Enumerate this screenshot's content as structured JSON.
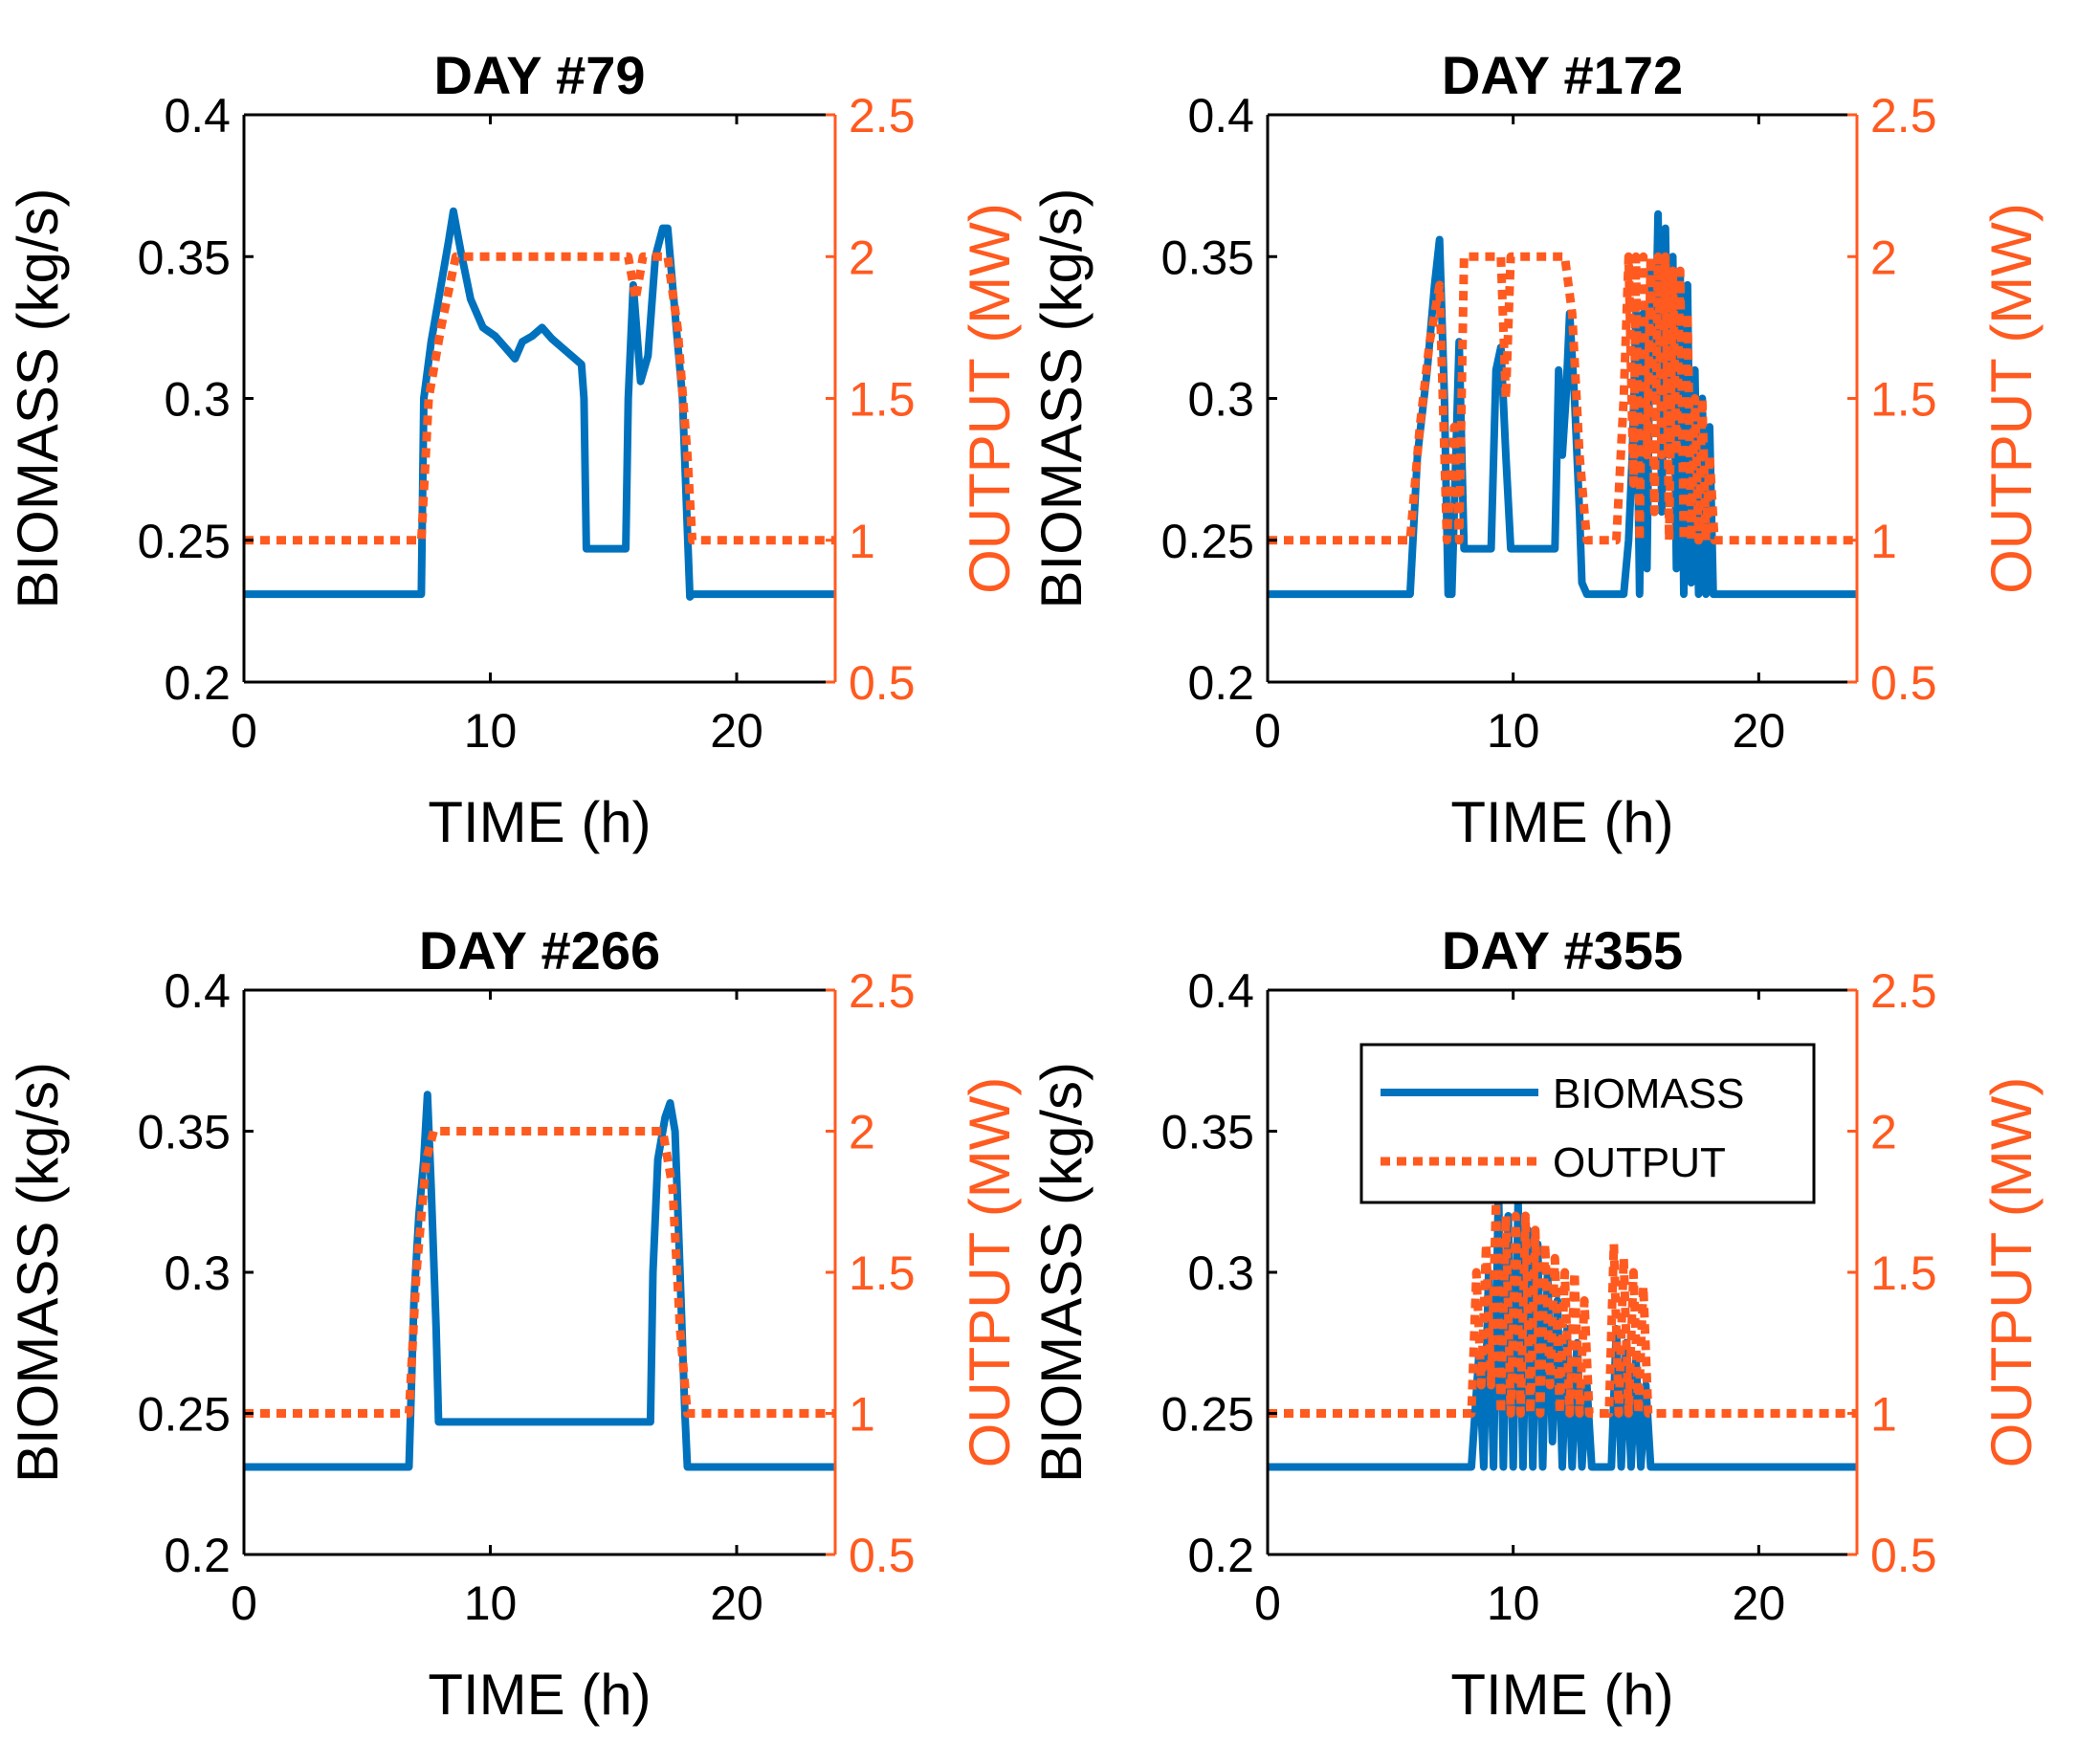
{
  "colors": {
    "biomass": "#0072BD",
    "output": "#FF5A1F",
    "axis": "#000000"
  },
  "chart_data": [
    {
      "type": "line",
      "title": "DAY #79",
      "xlabel": "TIME (h)",
      "ylabel": "BIOMASS (kg/s)",
      "y2label": "OUTPUT (MW)",
      "xlim": [
        0,
        24
      ],
      "ylim": [
        0.2,
        0.4
      ],
      "y2lim": [
        0.5,
        2.5
      ],
      "xticks": [
        0,
        10,
        20
      ],
      "xtick_labels": [
        "0",
        "10",
        "20"
      ],
      "yticks": [
        0.2,
        0.25,
        0.3,
        0.35,
        0.4
      ],
      "ytick_labels": [
        "0.2",
        "0.25",
        "0.3",
        "0.35",
        "0.4"
      ],
      "y2ticks": [
        0.5,
        1,
        1.5,
        2,
        2.5
      ],
      "y2tick_labels": [
        "0.5",
        "1",
        "1.5",
        "2",
        "2.5"
      ],
      "legend": null,
      "series": [
        {
          "name": "BIOMASS",
          "axis": "left",
          "style": "solid",
          "x": [
            0,
            7.2,
            7.3,
            7.6,
            8.0,
            8.3,
            8.5,
            8.8,
            9.2,
            9.7,
            10.2,
            10.6,
            11.0,
            11.3,
            11.7,
            12.1,
            12.5,
            12.9,
            13.3,
            13.7,
            13.8,
            13.9,
            15.5,
            15.6,
            15.8,
            16.1,
            16.4,
            16.7,
            17.0,
            17.2,
            17.4,
            17.6,
            17.8,
            18.1,
            18.2,
            24
          ],
          "y": [
            0.231,
            0.231,
            0.3,
            0.32,
            0.34,
            0.355,
            0.366,
            0.352,
            0.335,
            0.325,
            0.322,
            0.318,
            0.314,
            0.32,
            0.322,
            0.325,
            0.321,
            0.318,
            0.315,
            0.312,
            0.3,
            0.247,
            0.247,
            0.3,
            0.34,
            0.306,
            0.315,
            0.35,
            0.36,
            0.36,
            0.34,
            0.32,
            0.3,
            0.23,
            0.231,
            0.231
          ]
        },
        {
          "name": "OUTPUT",
          "axis": "right",
          "style": "dotted",
          "x": [
            0,
            7.2,
            7.5,
            8.0,
            8.6,
            15.6,
            15.9,
            16.2,
            17.2,
            17.6,
            18.0,
            18.2,
            24
          ],
          "y": [
            1,
            1,
            1.5,
            1.75,
            2,
            2,
            1.85,
            2,
            2,
            1.75,
            1.3,
            1,
            1
          ]
        }
      ]
    },
    {
      "type": "line",
      "title": "DAY #172",
      "xlabel": "TIME (h)",
      "ylabel": "BIOMASS (kg/s)",
      "y2label": "OUTPUT (MW)",
      "xlim": [
        0,
        24
      ],
      "ylim": [
        0.2,
        0.4
      ],
      "y2lim": [
        0.5,
        2.5
      ],
      "xticks": [
        0,
        10,
        20
      ],
      "xtick_labels": [
        "0",
        "10",
        "20"
      ],
      "yticks": [
        0.2,
        0.25,
        0.3,
        0.35,
        0.4
      ],
      "ytick_labels": [
        "0.2",
        "0.25",
        "0.3",
        "0.35",
        "0.4"
      ],
      "y2ticks": [
        0.5,
        1,
        1.5,
        2,
        2.5
      ],
      "y2tick_labels": [
        "0.5",
        "1",
        "1.5",
        "2",
        "2.5"
      ],
      "legend": null,
      "series": [
        {
          "name": "BIOMASS",
          "axis": "left",
          "style": "solid",
          "x": [
            0,
            5.8,
            6.1,
            6.5,
            6.8,
            7.0,
            7.2,
            7.35,
            7.5,
            7.8,
            8.0,
            8.2,
            8.45,
            9.1,
            9.3,
            9.5,
            9.7,
            9.9,
            11.7,
            11.85,
            12.0,
            12.15,
            12.3,
            12.5,
            12.7,
            12.8,
            13.0,
            14.5,
            14.7,
            14.85,
            15.0,
            15.15,
            15.3,
            15.45,
            15.6,
            15.75,
            15.9,
            16.05,
            16.2,
            16.35,
            16.5,
            16.65,
            16.8,
            16.95,
            17.1,
            17.25,
            17.4,
            17.55,
            17.7,
            17.85,
            18.0,
            18.15,
            18.3,
            24
          ],
          "y": [
            0.231,
            0.231,
            0.28,
            0.31,
            0.34,
            0.356,
            0.3,
            0.231,
            0.231,
            0.32,
            0.247,
            0.247,
            0.247,
            0.247,
            0.31,
            0.318,
            0.28,
            0.247,
            0.247,
            0.31,
            0.28,
            0.3,
            0.33,
            0.3,
            0.26,
            0.235,
            0.231,
            0.231,
            0.25,
            0.28,
            0.33,
            0.231,
            0.33,
            0.24,
            0.345,
            0.3,
            0.365,
            0.26,
            0.36,
            0.28,
            0.35,
            0.24,
            0.345,
            0.231,
            0.34,
            0.235,
            0.31,
            0.231,
            0.3,
            0.231,
            0.29,
            0.231,
            0.231,
            0.231
          ]
        },
        {
          "name": "OUTPUT",
          "axis": "right",
          "style": "dotted",
          "x": [
            0,
            5.8,
            6.2,
            6.6,
            7.0,
            7.3,
            7.6,
            7.8,
            8.0,
            8.3,
            9.5,
            9.7,
            9.9,
            10.1,
            12.1,
            12.4,
            12.7,
            13.0,
            14.2,
            14.5,
            14.7,
            14.9,
            15.0,
            15.15,
            15.3,
            15.45,
            15.6,
            15.75,
            15.9,
            16.05,
            16.2,
            16.35,
            16.5,
            16.65,
            16.8,
            16.95,
            17.1,
            17.25,
            17.4,
            17.55,
            17.7,
            17.85,
            18.0,
            18.2,
            24
          ],
          "y": [
            1,
            1,
            1.4,
            1.7,
            1.9,
            1,
            1.4,
            1,
            2,
            2,
            2,
            1.5,
            2,
            2,
            2,
            1.8,
            1.3,
            1,
            1,
            1.5,
            2,
            1.2,
            2,
            1,
            2,
            1.3,
            2,
            1.1,
            2,
            1.3,
            2,
            1,
            1.95,
            1.3,
            1.95,
            1,
            1.8,
            1,
            1.5,
            1,
            1.5,
            1,
            1.3,
            1,
            1
          ]
        }
      ]
    },
    {
      "type": "line",
      "title": "DAY #266",
      "xlabel": "TIME (h)",
      "ylabel": "BIOMASS (kg/s)",
      "y2label": "OUTPUT (MW)",
      "xlim": [
        0,
        24
      ],
      "ylim": [
        0.2,
        0.4
      ],
      "y2lim": [
        0.5,
        2.5
      ],
      "xticks": [
        0,
        10,
        20
      ],
      "xtick_labels": [
        "0",
        "10",
        "20"
      ],
      "yticks": [
        0.2,
        0.25,
        0.3,
        0.35,
        0.4
      ],
      "ytick_labels": [
        "0.2",
        "0.25",
        "0.3",
        "0.35",
        "0.4"
      ],
      "y2ticks": [
        0.5,
        1,
        1.5,
        2,
        2.5
      ],
      "y2tick_labels": [
        "0.5",
        "1",
        "1.5",
        "2",
        "2.5"
      ],
      "legend": null,
      "series": [
        {
          "name": "BIOMASS",
          "axis": "left",
          "style": "solid",
          "x": [
            0,
            6.7,
            6.9,
            7.1,
            7.3,
            7.45,
            7.6,
            7.8,
            7.9,
            16.5,
            16.6,
            16.8,
            17.1,
            17.3,
            17.5,
            17.7,
            17.9,
            18.0,
            24
          ],
          "y": [
            0.231,
            0.231,
            0.29,
            0.32,
            0.34,
            0.363,
            0.33,
            0.28,
            0.247,
            0.247,
            0.3,
            0.34,
            0.355,
            0.36,
            0.35,
            0.3,
            0.25,
            0.231,
            0.231
          ]
        },
        {
          "name": "OUTPUT",
          "axis": "right",
          "style": "dotted",
          "x": [
            0,
            6.7,
            7.0,
            7.4,
            7.7,
            17.0,
            17.4,
            17.7,
            18.0,
            24
          ],
          "y": [
            1,
            1,
            1.5,
            1.9,
            2,
            2,
            1.8,
            1.3,
            1,
            1
          ]
        }
      ]
    },
    {
      "type": "line",
      "title": "DAY #355",
      "xlabel": "TIME (h)",
      "ylabel": "BIOMASS (kg/s)",
      "y2label": "OUTPUT (MW)",
      "xlim": [
        0,
        24
      ],
      "ylim": [
        0.2,
        0.4
      ],
      "y2lim": [
        0.5,
        2.5
      ],
      "xticks": [
        0,
        10,
        20
      ],
      "xtick_labels": [
        "0",
        "10",
        "20"
      ],
      "yticks": [
        0.2,
        0.25,
        0.3,
        0.35,
        0.4
      ],
      "ytick_labels": [
        "0.2",
        "0.25",
        "0.3",
        "0.35",
        "0.4"
      ],
      "y2ticks": [
        0.5,
        1,
        1.5,
        2,
        2.5
      ],
      "y2tick_labels": [
        "0.5",
        "1",
        "1.5",
        "2",
        "2.5"
      ],
      "legend": {
        "position": "top-right",
        "entries": [
          "BIOMASS",
          "OUTPUT"
        ]
      },
      "series": [
        {
          "name": "BIOMASS",
          "axis": "left",
          "style": "solid",
          "x": [
            0,
            8.3,
            8.6,
            8.8,
            9.0,
            9.2,
            9.4,
            9.6,
            9.8,
            10.0,
            10.2,
            10.4,
            10.6,
            10.8,
            11.0,
            11.2,
            11.4,
            11.6,
            11.8,
            12.0,
            12.2,
            12.4,
            12.6,
            12.8,
            13.0,
            13.2,
            14.0,
            14.2,
            14.4,
            14.6,
            14.8,
            15.0,
            15.2,
            15.4,
            15.6,
            24
          ],
          "y": [
            0.231,
            0.231,
            0.27,
            0.231,
            0.3,
            0.231,
            0.33,
            0.231,
            0.32,
            0.231,
            0.325,
            0.231,
            0.315,
            0.231,
            0.31,
            0.231,
            0.3,
            0.24,
            0.29,
            0.231,
            0.28,
            0.231,
            0.275,
            0.231,
            0.26,
            0.231,
            0.231,
            0.28,
            0.231,
            0.275,
            0.231,
            0.27,
            0.231,
            0.26,
            0.231,
            0.231
          ]
        },
        {
          "name": "OUTPUT",
          "axis": "right",
          "style": "dotted",
          "x": [
            0,
            8.3,
            8.5,
            8.7,
            8.9,
            9.1,
            9.3,
            9.5,
            9.7,
            9.9,
            10.1,
            10.3,
            10.5,
            10.7,
            10.9,
            11.1,
            11.3,
            11.5,
            11.7,
            11.9,
            12.1,
            12.3,
            12.5,
            12.7,
            12.9,
            13.1,
            13.9,
            14.1,
            14.3,
            14.5,
            14.7,
            14.9,
            15.1,
            15.3,
            15.5,
            24
          ],
          "y": [
            1,
            1,
            1.5,
            1.1,
            1.6,
            1.1,
            1.75,
            1.0,
            1.7,
            1.0,
            1.7,
            1.0,
            1.7,
            1.0,
            1.65,
            1.0,
            1.6,
            1.1,
            1.55,
            1.0,
            1.5,
            1.0,
            1.5,
            1.0,
            1.4,
            1.0,
            1.0,
            1.6,
            1.0,
            1.55,
            1.0,
            1.5,
            1.0,
            1.45,
            1.0,
            1
          ]
        }
      ]
    }
  ]
}
